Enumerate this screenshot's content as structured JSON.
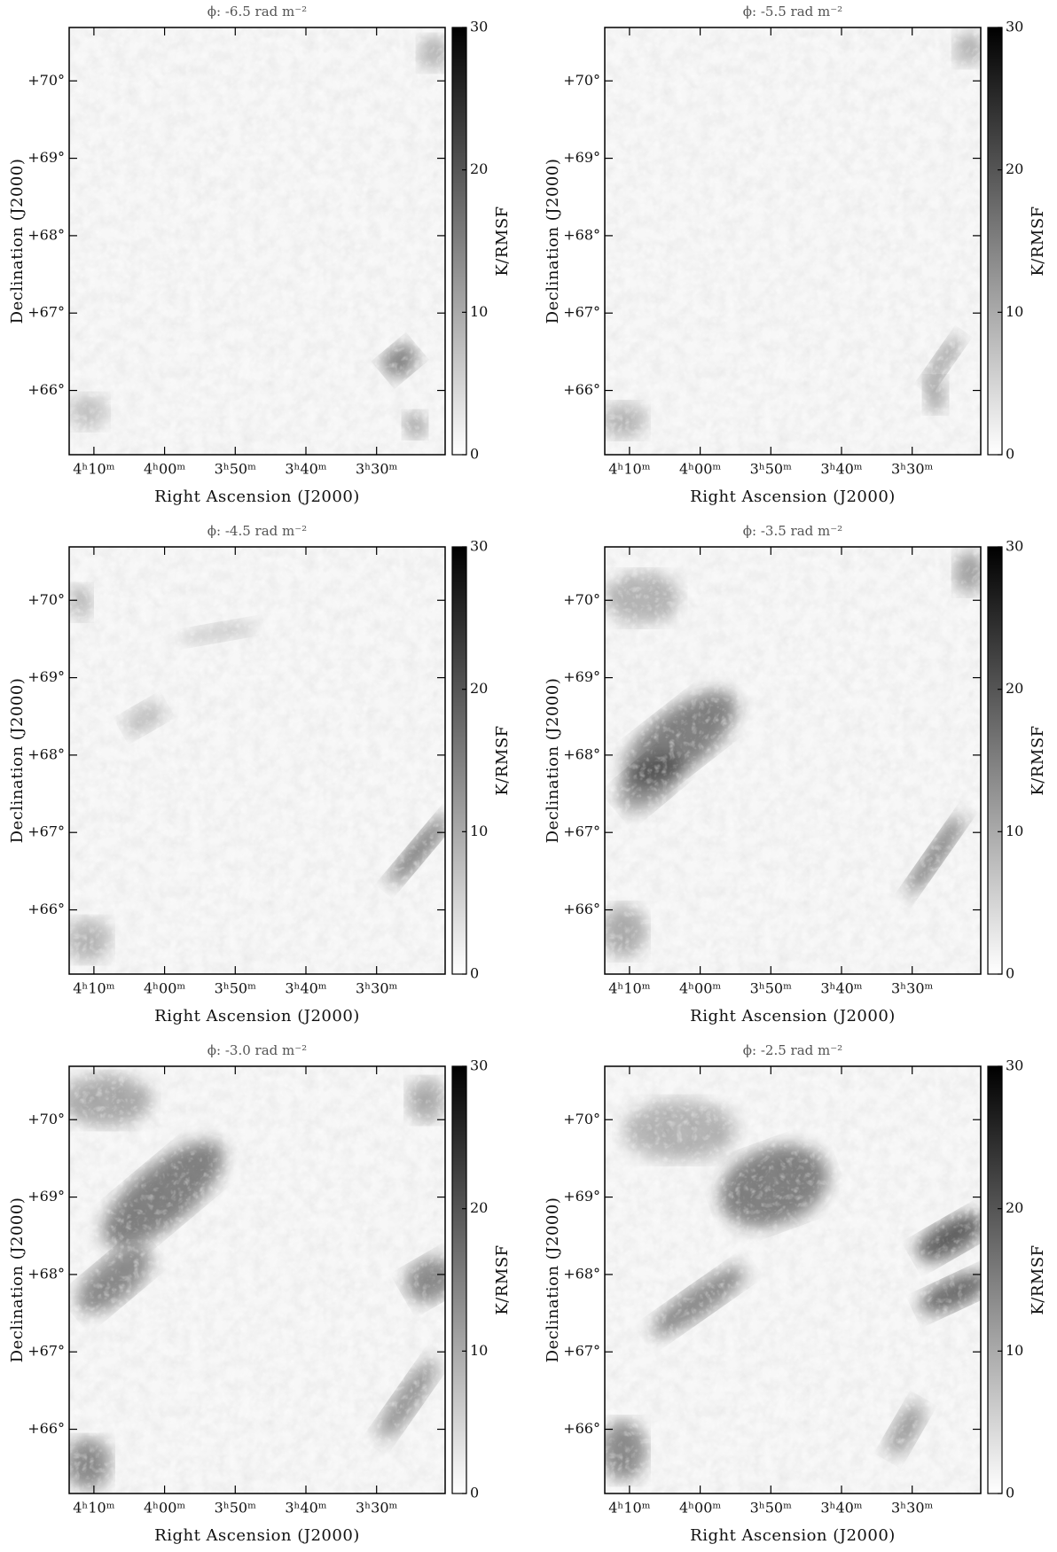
{
  "chart_data": [
    {
      "type": "image",
      "title": "ϕ: -6.5 rad m⁻²",
      "xlabel": "Right Ascension (J2000)",
      "ylabel": "Declination (J2000)",
      "colorbar_label": "K/RMSF",
      "xlim": [
        253.5,
        200.3
      ],
      "xticks": [
        {
          "value": 250,
          "label": "4ʰ10ᵐ"
        },
        {
          "value": 240,
          "label": "4ʰ00ᵐ"
        },
        {
          "value": 230,
          "label": "3ʰ50ᵐ"
        },
        {
          "value": 220,
          "label": "3ʰ40ᵐ"
        },
        {
          "value": 210,
          "label": "3ʰ30ᵐ"
        }
      ],
      "ylim": [
        65.17,
        70.69
      ],
      "yticks": [
        {
          "value": 66,
          "label": "+66°"
        },
        {
          "value": 67,
          "label": "+67°"
        },
        {
          "value": 68,
          "label": "+68°"
        },
        {
          "value": 69,
          "label": "+69°"
        },
        {
          "value": 70,
          "label": "+70°"
        }
      ],
      "clim": [
        0,
        30
      ],
      "cticks": [
        0,
        10,
        20,
        30
      ]
    },
    {
      "type": "image",
      "title": "ϕ: -5.5 rad m⁻²",
      "xlabel": "Right Ascension (J2000)",
      "ylabel": "Declination (J2000)",
      "colorbar_label": "K/RMSF",
      "xlim": [
        253.5,
        200.3
      ],
      "xticks": [
        {
          "value": 250,
          "label": "4ʰ10ᵐ"
        },
        {
          "value": 240,
          "label": "4ʰ00ᵐ"
        },
        {
          "value": 230,
          "label": "3ʰ50ᵐ"
        },
        {
          "value": 220,
          "label": "3ʰ40ᵐ"
        },
        {
          "value": 210,
          "label": "3ʰ30ᵐ"
        }
      ],
      "ylim": [
        65.17,
        70.69
      ],
      "yticks": [
        {
          "value": 66,
          "label": "+66°"
        },
        {
          "value": 67,
          "label": "+67°"
        },
        {
          "value": 68,
          "label": "+68°"
        },
        {
          "value": 69,
          "label": "+69°"
        },
        {
          "value": 70,
          "label": "+70°"
        }
      ],
      "clim": [
        0,
        30
      ],
      "cticks": [
        0,
        10,
        20,
        30
      ]
    },
    {
      "type": "image",
      "title": "ϕ: -4.5 rad m⁻²",
      "xlabel": "Right Ascension (J2000)",
      "ylabel": "Declination (J2000)",
      "colorbar_label": "K/RMSF",
      "xlim": [
        253.5,
        200.3
      ],
      "xticks": [
        {
          "value": 250,
          "label": "4ʰ10ᵐ"
        },
        {
          "value": 240,
          "label": "4ʰ00ᵐ"
        },
        {
          "value": 230,
          "label": "3ʰ50ᵐ"
        },
        {
          "value": 220,
          "label": "3ʰ40ᵐ"
        },
        {
          "value": 210,
          "label": "3ʰ30ᵐ"
        }
      ],
      "ylim": [
        65.17,
        70.69
      ],
      "yticks": [
        {
          "value": 66,
          "label": "+66°"
        },
        {
          "value": 67,
          "label": "+67°"
        },
        {
          "value": 68,
          "label": "+68°"
        },
        {
          "value": 69,
          "label": "+69°"
        },
        {
          "value": 70,
          "label": "+70°"
        }
      ],
      "clim": [
        0,
        30
      ],
      "cticks": [
        0,
        10,
        20,
        30
      ]
    },
    {
      "type": "image",
      "title": "ϕ: -3.5 rad m⁻²",
      "xlabel": "Right Ascension (J2000)",
      "ylabel": "Declination (J2000)",
      "colorbar_label": "K/RMSF",
      "xlim": [
        253.5,
        200.3
      ],
      "xticks": [
        {
          "value": 250,
          "label": "4ʰ10ᵐ"
        },
        {
          "value": 240,
          "label": "4ʰ00ᵐ"
        },
        {
          "value": 230,
          "label": "3ʰ50ᵐ"
        },
        {
          "value": 220,
          "label": "3ʰ40ᵐ"
        },
        {
          "value": 210,
          "label": "3ʰ30ᵐ"
        }
      ],
      "ylim": [
        65.17,
        70.69
      ],
      "yticks": [
        {
          "value": 66,
          "label": "+66°"
        },
        {
          "value": 67,
          "label": "+67°"
        },
        {
          "value": 68,
          "label": "+68°"
        },
        {
          "value": 69,
          "label": "+69°"
        },
        {
          "value": 70,
          "label": "+70°"
        }
      ],
      "clim": [
        0,
        30
      ],
      "cticks": [
        0,
        10,
        20,
        30
      ]
    },
    {
      "type": "image",
      "title": "ϕ: -3.0 rad m⁻²",
      "xlabel": "Right Ascension (J2000)",
      "ylabel": "Declination (J2000)",
      "colorbar_label": "K/RMSF",
      "xlim": [
        253.5,
        200.3
      ],
      "xticks": [
        {
          "value": 250,
          "label": "4ʰ10ᵐ"
        },
        {
          "value": 240,
          "label": "4ʰ00ᵐ"
        },
        {
          "value": 230,
          "label": "3ʰ50ᵐ"
        },
        {
          "value": 220,
          "label": "3ʰ40ᵐ"
        },
        {
          "value": 210,
          "label": "3ʰ30ᵐ"
        }
      ],
      "ylim": [
        65.17,
        70.69
      ],
      "yticks": [
        {
          "value": 66,
          "label": "+66°"
        },
        {
          "value": 67,
          "label": "+67°"
        },
        {
          "value": 68,
          "label": "+68°"
        },
        {
          "value": 69,
          "label": "+69°"
        },
        {
          "value": 70,
          "label": "+70°"
        }
      ],
      "clim": [
        0,
        30
      ],
      "cticks": [
        0,
        10,
        20,
        30
      ]
    },
    {
      "type": "image",
      "title": "ϕ: -2.5 rad m⁻²",
      "xlabel": "Right Ascension (J2000)",
      "ylabel": "Declination (J2000)",
      "colorbar_label": "K/RMSF",
      "xlim": [
        253.5,
        200.3
      ],
      "xticks": [
        {
          "value": 250,
          "label": "4ʰ10ᵐ"
        },
        {
          "value": 240,
          "label": "4ʰ00ᵐ"
        },
        {
          "value": 230,
          "label": "3ʰ50ᵐ"
        },
        {
          "value": 220,
          "label": "3ʰ40ᵐ"
        },
        {
          "value": 210,
          "label": "3ʰ30ᵐ"
        }
      ],
      "ylim": [
        65.17,
        70.69
      ],
      "yticks": [
        {
          "value": 66,
          "label": "+66°"
        },
        {
          "value": 67,
          "label": "+67°"
        },
        {
          "value": 68,
          "label": "+68°"
        },
        {
          "value": 69,
          "label": "+69°"
        },
        {
          "value": 70,
          "label": "+70°"
        }
      ],
      "clim": [
        0,
        30
      ],
      "cticks": [
        0,
        10,
        20,
        30
      ]
    }
  ]
}
